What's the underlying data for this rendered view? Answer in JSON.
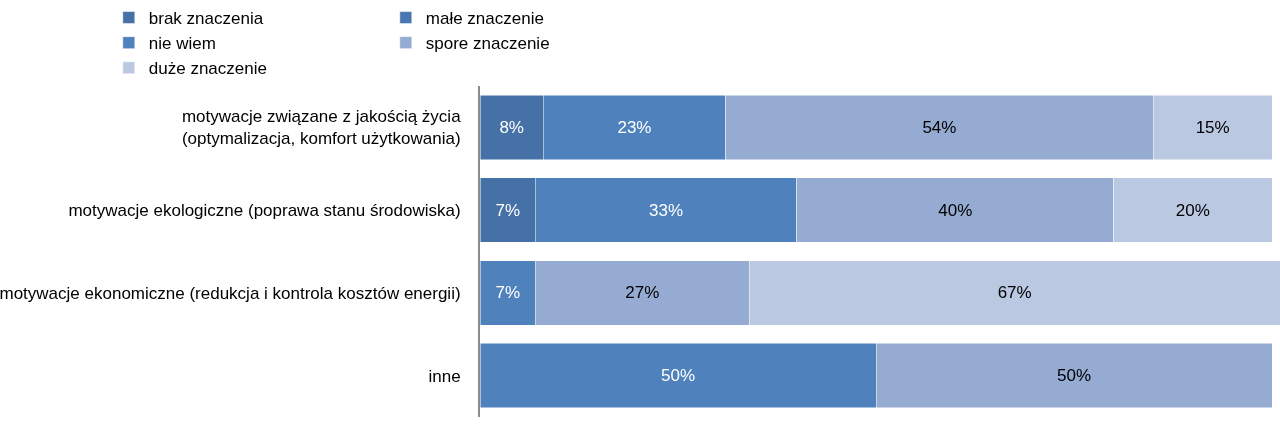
{
  "chart_data": {
    "type": "bar",
    "orientation": "horizontal",
    "stacked": true,
    "legend": "top",
    "tick_labels": "y",
    "grid": false,
    "categories": [
      "motywacje związane z jakością życia\n(optymalizacja, komfort użytkowania)",
      "motywacje ekologiczne (poprawa stanu środowiska)",
      "motywacje ekonomiczne (redukcja i kontrola kosztów energii)",
      "inne"
    ],
    "series": [
      {
        "name": "brak znaczenia",
        "color": "#4571a6",
        "values": [
          8,
          7,
          null,
          null
        ],
        "value_labels": [
          "8%",
          "7%",
          null,
          null
        ]
      },
      {
        "name": "małe znaczenie",
        "color": "#4a77b2",
        "values": [
          null,
          null,
          null,
          null
        ],
        "value_labels": [
          null,
          null,
          null,
          null
        ]
      },
      {
        "name": "nie wiem",
        "color": "#4f81bd",
        "values": [
          23,
          33,
          7,
          50
        ],
        "value_labels": [
          "23%",
          "33%",
          "7%",
          "50%"
        ]
      },
      {
        "name": "spore znaczenie",
        "color": "#95abd2",
        "values": [
          54,
          40,
          27,
          50
        ],
        "value_labels": [
          "54%",
          "40%",
          "27%",
          "50%"
        ]
      },
      {
        "name": "duże znaczenie",
        "color": "#bac8e1",
        "values": [
          15,
          20,
          67,
          null
        ],
        "value_labels": [
          "15%",
          "20%",
          "67%",
          null
        ]
      }
    ]
  }
}
